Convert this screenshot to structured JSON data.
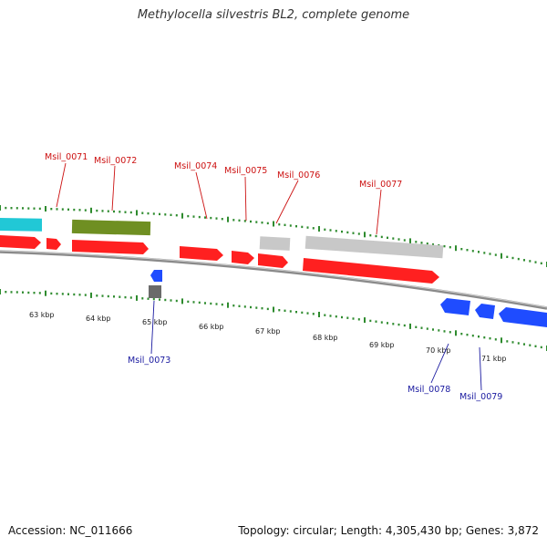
{
  "title": "Methylocella silvestris BL2, complete genome",
  "accession": "Accession: NC_011666",
  "summary": "Topology: circular; Length: 4,305,430 bp; Genes: 3,872",
  "colors": {
    "red": "#ff2020",
    "blue": "#1f4cff",
    "cyan": "#21c8d6",
    "olive": "#6f8f22",
    "lightgray": "#c8c8c8",
    "darkgray": "#6a6a6a",
    "backbone": "#8a8a8a",
    "tick": "#2e8b2e",
    "label_red": "#cc1111",
    "label_blue": "#1a1aa0"
  },
  "tick_labels": [
    "63 kbp",
    "64 kbp",
    "65 kbp",
    "66 kbp",
    "67 kbp",
    "68 kbp",
    "69 kbp",
    "70 kbp",
    "71 kbp"
  ],
  "gene_labels": [
    "Msil_0071",
    "Msil_0072",
    "Msil_0073",
    "Msil_0074",
    "Msil_0075",
    "Msil_0076",
    "Msil_0077",
    "Msil_0078",
    "Msil_0079"
  ]
}
